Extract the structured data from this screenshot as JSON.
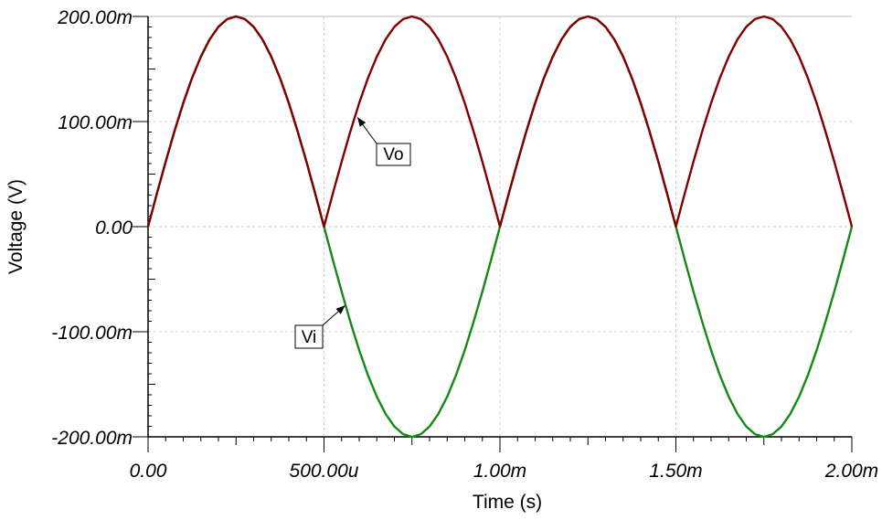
{
  "chart_data": {
    "type": "line",
    "title": "",
    "xlabel": "Time (s)",
    "ylabel": "Voltage (V)",
    "xlim": [
      0,
      0.002
    ],
    "ylim": [
      -0.2,
      0.2
    ],
    "grid": true,
    "x_ticks": [
      0,
      0.0005,
      0.001,
      0.0015,
      0.002
    ],
    "x_tick_labels": [
      "0.00",
      "500.00u",
      "1.00m",
      "1.50m",
      "2.00m"
    ],
    "y_ticks": [
      0.2,
      0.1,
      0,
      -0.1,
      -0.2
    ],
    "y_tick_labels": [
      "200.00m",
      "100.00m",
      "0.00",
      "-100.00m",
      "-200.00m"
    ],
    "x": [
      0,
      2.5e-05,
      5e-05,
      7.5e-05,
      0.0001,
      0.000125,
      0.00015,
      0.000175,
      0.0002,
      0.000225,
      0.00025,
      0.000275,
      0.0003,
      0.000325,
      0.00035,
      0.000375,
      0.0004,
      0.000425,
      0.00045,
      0.000475,
      0.0005,
      0.000525,
      0.00055,
      0.000575,
      0.0006,
      0.000625,
      0.00065,
      0.000675,
      0.0007,
      0.000725,
      0.00075,
      0.000775,
      0.0008,
      0.000825,
      0.00085,
      0.000875,
      0.0009,
      0.000925,
      0.00095,
      0.000975,
      0.001,
      0.001025,
      0.00105,
      0.001075,
      0.0011,
      0.001125,
      0.00115,
      0.001175,
      0.0012,
      0.001225,
      0.00125,
      0.001275,
      0.0013,
      0.001325,
      0.00135,
      0.001375,
      0.0014,
      0.001425,
      0.00145,
      0.001475,
      0.0015,
      0.001525,
      0.00155,
      0.001575,
      0.0016,
      0.001625,
      0.00165,
      0.001675,
      0.0017,
      0.001725,
      0.00175,
      0.001775,
      0.0018,
      0.001825,
      0.00185,
      0.001875,
      0.0019,
      0.001925,
      0.00195,
      0.001975,
      0.002
    ],
    "series": [
      {
        "name": "Vi",
        "color": "#138a13",
        "values": [
          0,
          0.0313,
          0.0618,
          0.0908,
          0.1176,
          0.1414,
          0.1618,
          0.1782,
          0.1902,
          0.1975,
          0.2,
          0.1975,
          0.1902,
          0.1782,
          0.1618,
          0.1414,
          0.1176,
          0.0908,
          0.0618,
          0.0313,
          0,
          -0.0313,
          -0.0618,
          -0.0908,
          -0.1176,
          -0.1414,
          -0.1618,
          -0.1782,
          -0.1902,
          -0.1975,
          -0.2,
          -0.1975,
          -0.1902,
          -0.1782,
          -0.1618,
          -0.1414,
          -0.1176,
          -0.0908,
          -0.0618,
          -0.0313,
          0,
          0.0313,
          0.0618,
          0.0908,
          0.1176,
          0.1414,
          0.1618,
          0.1782,
          0.1902,
          0.1975,
          0.2,
          0.1975,
          0.1902,
          0.1782,
          0.1618,
          0.1414,
          0.1176,
          0.0908,
          0.0618,
          0.0313,
          0,
          -0.0313,
          -0.0618,
          -0.0908,
          -0.1176,
          -0.1414,
          -0.1618,
          -0.1782,
          -0.1902,
          -0.1975,
          -0.2,
          -0.1975,
          -0.1902,
          -0.1782,
          -0.1618,
          -0.1414,
          -0.1176,
          -0.0908,
          -0.0618,
          -0.0313,
          0
        ]
      },
      {
        "name": "Vo",
        "color": "#800000",
        "values": [
          0,
          0.0313,
          0.0618,
          0.0908,
          0.1176,
          0.1414,
          0.1618,
          0.1782,
          0.1902,
          0.1975,
          0.2,
          0.1975,
          0.1902,
          0.1782,
          0.1618,
          0.1414,
          0.1176,
          0.0908,
          0.0618,
          0.0313,
          0,
          0.0313,
          0.0618,
          0.0908,
          0.1176,
          0.1414,
          0.1618,
          0.1782,
          0.1902,
          0.1975,
          0.2,
          0.1975,
          0.1902,
          0.1782,
          0.1618,
          0.1414,
          0.1176,
          0.0908,
          0.0618,
          0.0313,
          0,
          0.0313,
          0.0618,
          0.0908,
          0.1176,
          0.1414,
          0.1618,
          0.1782,
          0.1902,
          0.1975,
          0.2,
          0.1975,
          0.1902,
          0.1782,
          0.1618,
          0.1414,
          0.1176,
          0.0908,
          0.0618,
          0.0313,
          0,
          0.0313,
          0.0618,
          0.0908,
          0.1176,
          0.1414,
          0.1618,
          0.1782,
          0.1902,
          0.1975,
          0.2,
          0.1975,
          0.1902,
          0.1782,
          0.1618,
          0.1414,
          0.1176,
          0.0908,
          0.0618,
          0.0313,
          0
        ]
      }
    ],
    "annotations": [
      {
        "text": "Vo",
        "series": "Vo",
        "x": 0.000595,
        "y": 0.104
      },
      {
        "text": "Vi",
        "series": "Vi",
        "x": 0.00056,
        "y": -0.075
      }
    ]
  }
}
